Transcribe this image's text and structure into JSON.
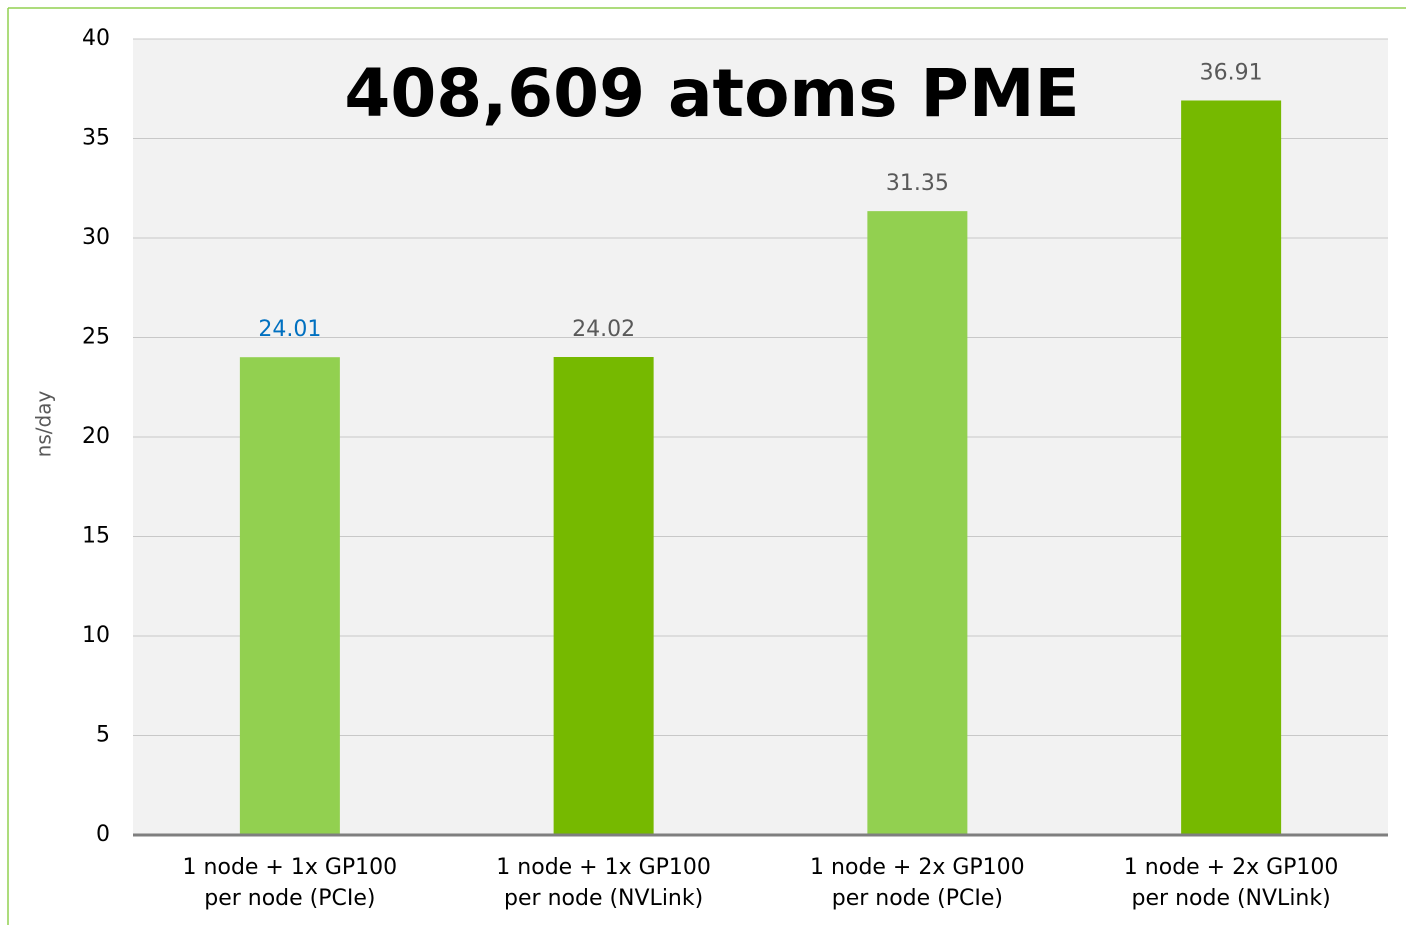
{
  "chart_data": {
    "type": "bar",
    "title": "408,609 atoms PME",
    "y_label": "ns/day",
    "categories": [
      "1 node + 1x GP100\nper node (PCIe)",
      "1 node + 1x GP100\nper node (NVLink)",
      "1 node + 2x GP100\nper node (PCIe)",
      "1 node + 2x GP100\nper node (NVLink)"
    ],
    "values": [
      24.01,
      24.02,
      31.35,
      36.91
    ],
    "colors": [
      "#92d050",
      "#76b900",
      "#92d050",
      "#76b900"
    ],
    "label_colors": [
      "#0070c0",
      "#595959",
      "#595959",
      "#595959"
    ],
    "ylim": [
      0,
      40
    ],
    "yticks": [
      0,
      5,
      10,
      15,
      20,
      25,
      30,
      35,
      40
    ],
    "grid": true
  }
}
